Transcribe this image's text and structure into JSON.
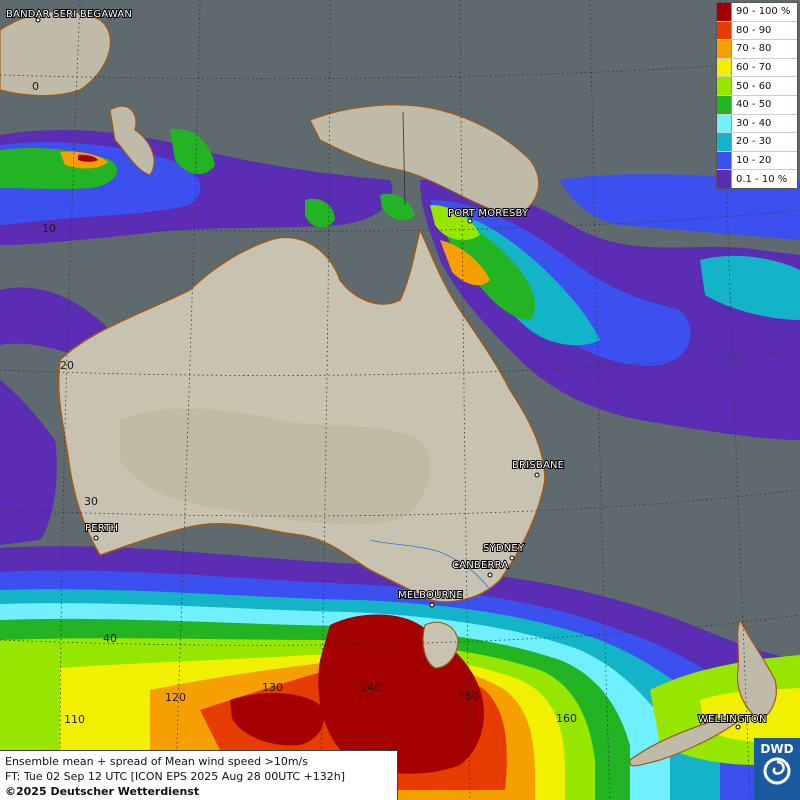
{
  "cities": {
    "bandar": "BANDAR SERI BEGAWAN",
    "port_moresby": "PORT MORESBY",
    "brisbane": "BRISBANE",
    "perth": "PERTH",
    "sydney": "SYDNEY",
    "canberra": "CANBERRA",
    "melbourne": "MELBOURNE",
    "wellington": "WELLINGTON"
  },
  "grid_labels": {
    "lat_0": "0",
    "lat_10": "10",
    "lat_20": "20",
    "lat_30": "30",
    "lat_40": "40",
    "lon_110": "110",
    "lon_120": "120",
    "lon_130": "130",
    "lon_140": "140",
    "lon_150": "150",
    "lon_160": "160"
  },
  "legend": [
    {
      "label": "90 - 100 %",
      "color": "#a50000"
    },
    {
      "label": "80 - 90",
      "color": "#e63c00"
    },
    {
      "label": "70 - 80",
      "color": "#f5a000"
    },
    {
      "label": "60 - 70",
      "color": "#f0f000"
    },
    {
      "label": "50 - 60",
      "color": "#96e600"
    },
    {
      "label": "40 - 50",
      "color": "#22b422"
    },
    {
      "label": "30 - 40",
      "color": "#70f0ff"
    },
    {
      "label": "20 - 30",
      "color": "#14b4c8"
    },
    {
      "label": "10 - 20",
      "color": "#3c50f0"
    },
    {
      "label": "0.1 - 10 %",
      "color": "#5a2db4"
    }
  ],
  "info": {
    "line1": "Ensemble mean + spread of Mean wind speed >10m/s",
    "line2": "FT: Tue 02 Sep 12 UTC [ICON EPS 2025 Aug 28 00UTC +132h]",
    "line3": "©2025 Deutscher Wetterdienst"
  },
  "logo": {
    "text": "DWD"
  }
}
